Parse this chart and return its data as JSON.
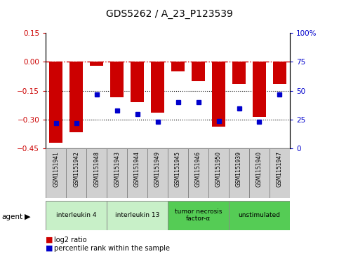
{
  "title": "GDS5262 / A_23_P123539",
  "samples": [
    "GSM1151941",
    "GSM1151942",
    "GSM1151948",
    "GSM1151943",
    "GSM1151944",
    "GSM1151949",
    "GSM1151945",
    "GSM1151946",
    "GSM1151950",
    "GSM1151939",
    "GSM1151940",
    "GSM1151947"
  ],
  "log2_ratio": [
    -0.42,
    -0.365,
    -0.02,
    -0.185,
    -0.21,
    -0.265,
    -0.05,
    -0.1,
    -0.335,
    -0.115,
    -0.285,
    -0.115
  ],
  "percentile_rank": [
    22,
    22,
    47,
    33,
    30,
    23,
    40,
    40,
    24,
    35,
    23,
    47
  ],
  "agents": [
    {
      "label": "interleukin 4",
      "start": 0,
      "end": 3,
      "color": "#c8f0c8"
    },
    {
      "label": "interleukin 13",
      "start": 3,
      "end": 6,
      "color": "#c8f0c8"
    },
    {
      "label": "tumor necrosis\nfactor-α",
      "start": 6,
      "end": 9,
      "color": "#55cc55"
    },
    {
      "label": "unstimulated",
      "start": 9,
      "end": 12,
      "color": "#55cc55"
    }
  ],
  "ylim_left": [
    -0.45,
    0.15
  ],
  "ylim_right": [
    0,
    100
  ],
  "yticks_left": [
    0.15,
    0.0,
    -0.15,
    -0.3,
    -0.45
  ],
  "yticks_right": [
    100,
    75,
    50,
    25,
    0
  ],
  "bar_color": "#cc0000",
  "dot_color": "#0000cc",
  "dotted_lines": [
    -0.15,
    -0.3
  ]
}
